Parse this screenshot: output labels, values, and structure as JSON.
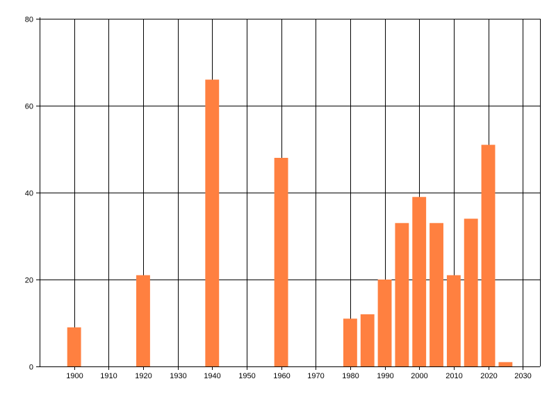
{
  "chart_data": {
    "type": "bar",
    "x": [
      1900,
      1920,
      1940,
      1960,
      1980,
      1985,
      1990,
      1995,
      2000,
      2005,
      2010,
      2015,
      2020,
      2025
    ],
    "values": [
      9,
      21,
      66,
      48,
      11,
      12,
      20,
      33,
      39,
      33,
      21,
      34,
      51,
      1
    ],
    "xlim": [
      1890,
      2035
    ],
    "ylim": [
      0,
      80
    ],
    "x_ticks": [
      1900,
      1910,
      1920,
      1930,
      1940,
      1950,
      1960,
      1970,
      1980,
      1990,
      2000,
      2010,
      2020,
      2030
    ],
    "y_ticks": [
      0,
      20,
      40,
      60,
      80
    ],
    "title": "",
    "xlabel": "",
    "ylabel": "",
    "grid": true,
    "bar_color": "#ff8040",
    "grid_color": "#000000"
  }
}
